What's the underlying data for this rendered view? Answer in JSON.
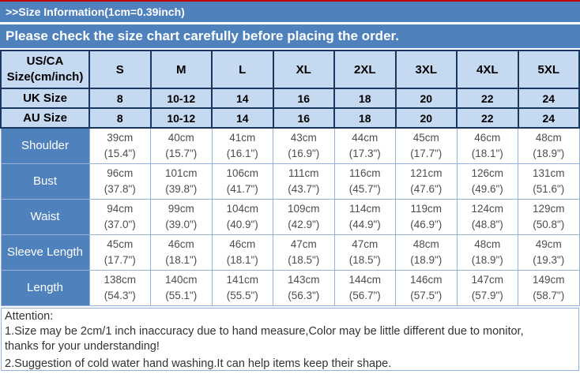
{
  "header": {
    "title": ">>Size Information(1cm=0.39inch)",
    "banner": "Please check the size chart carefully before placing the order."
  },
  "table": {
    "corner_header_lines": [
      "US/CA",
      "Size(cm/inch)"
    ],
    "size_columns": [
      "S",
      "M",
      "L",
      "XL",
      "2XL",
      "3XL",
      "4XL",
      "5XL"
    ],
    "size_rows": [
      {
        "label": "UK Size",
        "values": [
          "8",
          "10-12",
          "14",
          "16",
          "18",
          "20",
          "22",
          "24"
        ]
      },
      {
        "label": "AU Size",
        "values": [
          "8",
          "10-12",
          "14",
          "16",
          "18",
          "20",
          "22",
          "24"
        ]
      }
    ],
    "measurement_rows": [
      {
        "label": "Shoulder",
        "values": [
          {
            "cm": "39cm",
            "in": "(15.4\")"
          },
          {
            "cm": "40cm",
            "in": "(15.7\")"
          },
          {
            "cm": "41cm",
            "in": "(16.1\")"
          },
          {
            "cm": "43cm",
            "in": "(16.9\")"
          },
          {
            "cm": "44cm",
            "in": "(17.3\")"
          },
          {
            "cm": "45cm",
            "in": "(17.7\")"
          },
          {
            "cm": "46cm",
            "in": "(18.1\")"
          },
          {
            "cm": "48cm",
            "in": "(18.9\")"
          }
        ]
      },
      {
        "label": "Bust",
        "values": [
          {
            "cm": "96cm",
            "in": "(37.8\")"
          },
          {
            "cm": "101cm",
            "in": "(39.8\")"
          },
          {
            "cm": "106cm",
            "in": "(41.7\")"
          },
          {
            "cm": "111cm",
            "in": "(43.7\")"
          },
          {
            "cm": "116cm",
            "in": "(45.7\")"
          },
          {
            "cm": "121cm",
            "in": "(47.6\")"
          },
          {
            "cm": "126cm",
            "in": "(49.6\")"
          },
          {
            "cm": "131cm",
            "in": "(51.6\")"
          }
        ]
      },
      {
        "label": "Waist",
        "values": [
          {
            "cm": "94cm",
            "in": "(37.0\")"
          },
          {
            "cm": "99cm",
            "in": "(39.0\")"
          },
          {
            "cm": "104cm",
            "in": "(40.9\")"
          },
          {
            "cm": "109cm",
            "in": "(42.9\")"
          },
          {
            "cm": "114cm",
            "in": "(44.9\")"
          },
          {
            "cm": "119cm",
            "in": "(46.9\")"
          },
          {
            "cm": "124cm",
            "in": "(48.8\")"
          },
          {
            "cm": "129cm",
            "in": "(50.8\")"
          }
        ]
      },
      {
        "label": "Sleeve Length",
        "values": [
          {
            "cm": "45cm",
            "in": "(17.7\")"
          },
          {
            "cm": "46cm",
            "in": "(18.1\")"
          },
          {
            "cm": "46cm",
            "in": "(18.1\")"
          },
          {
            "cm": "47cm",
            "in": "(18.5\")"
          },
          {
            "cm": "47cm",
            "in": "(18.5\")"
          },
          {
            "cm": "48cm",
            "in": "(18.9\")"
          },
          {
            "cm": "48cm",
            "in": "(18.9\")"
          },
          {
            "cm": "49cm",
            "in": "(19.3\")"
          }
        ]
      },
      {
        "label": "Length",
        "values": [
          {
            "cm": "138cm",
            "in": "(54.3\")"
          },
          {
            "cm": "140cm",
            "in": "(55.1\")"
          },
          {
            "cm": "141cm",
            "in": "(55.5\")"
          },
          {
            "cm": "143cm",
            "in": "(56.3\")"
          },
          {
            "cm": "144cm",
            "in": "(56.7\")"
          },
          {
            "cm": "146cm",
            "in": "(57.5\")"
          },
          {
            "cm": "147cm",
            "in": "(57.9\")"
          },
          {
            "cm": "149cm",
            "in": "(58.7\")"
          }
        ]
      }
    ]
  },
  "attention": {
    "title": "Attention:",
    "lines": [
      "1.Size may be 2cm/1 inch inaccuracy due to hand measure,Color may be little different due to monitor,",
      "thanks for your understanding!",
      "2.Suggestion of cold water hand washing.It can help items keep their shape."
    ]
  },
  "colors": {
    "accent_blue": "#4f81bd",
    "light_blue": "#c5d9f1",
    "border_navy": "#17375e",
    "border_light_blue": "#95b3d7",
    "top_line_red": "#c00000",
    "data_text": "#4d4d4d"
  }
}
